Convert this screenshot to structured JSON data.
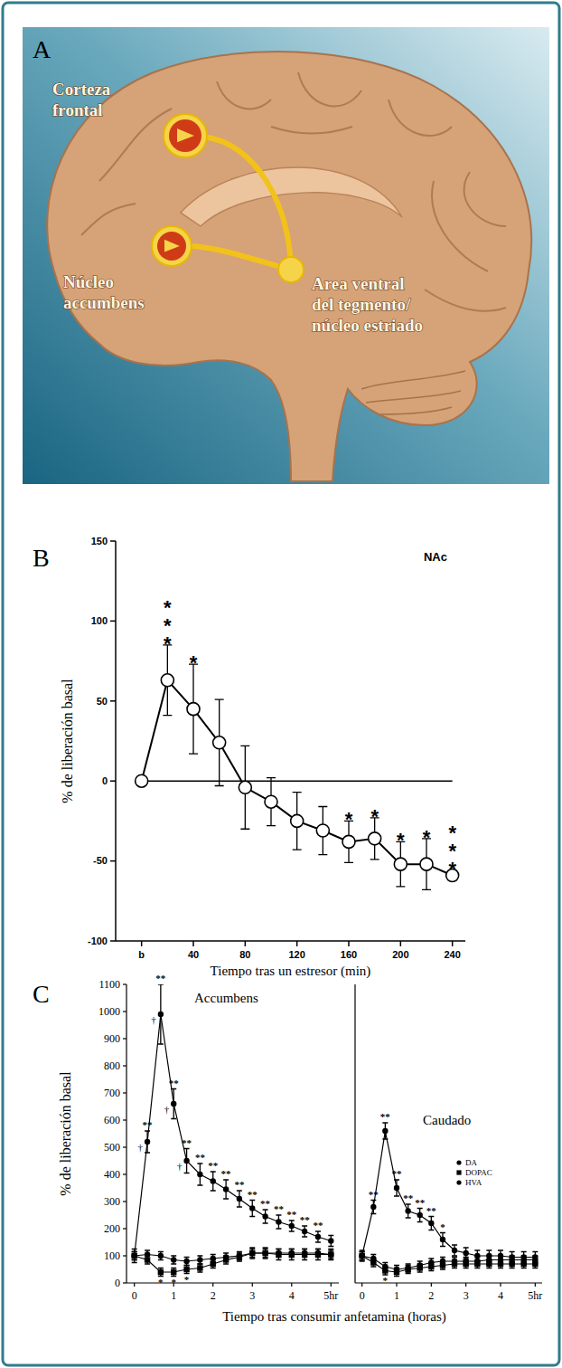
{
  "panel_a": {
    "panel_label": "A",
    "labels": [
      {
        "lines": [
          "Corteza",
          "frontal"
        ]
      },
      {
        "lines": [
          "Núcleo",
          "accumbens"
        ]
      },
      {
        "lines": [
          "Area ventral",
          "del tegmento/",
          "núcleo estriado"
        ]
      }
    ]
  },
  "chart_data": [
    {
      "type": "line",
      "panel_label": "B",
      "title": "NAc",
      "x_label": "Tiempo tras un estresor (min)",
      "y_label": "% de liberación basal",
      "x": [
        0,
        20,
        40,
        60,
        80,
        100,
        120,
        140,
        160,
        180,
        200,
        220,
        240
      ],
      "xlim": [
        -20,
        250
      ],
      "xticks": [
        {
          "value": 0,
          "label": "b"
        },
        40,
        80,
        120,
        160,
        200,
        240
      ],
      "ylim": [
        -100,
        150
      ],
      "yticks": [
        -100,
        -50,
        0,
        50,
        100,
        150
      ],
      "series": [
        {
          "color": "#000000",
          "marker": "open-circle",
          "values": [
            0,
            63,
            45,
            24,
            -4,
            -13,
            -25,
            -31,
            -38,
            -36,
            -52,
            -52,
            -59
          ],
          "errors": [
            0,
            22,
            28,
            27,
            26,
            15,
            18,
            15,
            13,
            13,
            14,
            16,
            3
          ],
          "significance": [
            null,
            "***",
            "*",
            null,
            null,
            null,
            null,
            null,
            "*",
            "*",
            "*",
            "*",
            "***"
          ]
        }
      ]
    },
    {
      "type": "line",
      "panel_label": "C",
      "title": "Accumbens",
      "x_label": "Tiempo tras consumir anfetamina (horas)",
      "y_label": "% de liberación basal",
      "x": [
        0,
        0.33,
        0.67,
        1,
        1.33,
        1.67,
        2,
        2.33,
        2.67,
        3,
        3.33,
        3.67,
        4,
        4.33,
        4.67,
        5
      ],
      "xlim": [
        -0.2,
        5.2
      ],
      "xticks": [
        0,
        1,
        2,
        3,
        4,
        {
          "value": 5,
          "label": "5hr"
        }
      ],
      "ylim": [
        0,
        1100
      ],
      "yticks": [
        0,
        100,
        200,
        300,
        400,
        500,
        600,
        700,
        800,
        900,
        1000,
        1100
      ],
      "series": [
        {
          "color": "#000000",
          "marker": "circle",
          "values": [
            100,
            520,
            990,
            660,
            450,
            400,
            375,
            345,
            310,
            275,
            245,
            225,
            210,
            190,
            170,
            155
          ],
          "errors": [
            25,
            40,
            110,
            55,
            45,
            40,
            35,
            35,
            30,
            30,
            25,
            25,
            20,
            20,
            20,
            20
          ],
          "significance": [
            null,
            "**",
            "**",
            "**",
            "**",
            "**",
            "**",
            "**",
            "**",
            "**",
            "**",
            "**",
            "**",
            "**",
            "**",
            null
          ],
          "dagger": [
            null,
            "†",
            "†",
            "†",
            "†",
            null,
            null,
            null,
            null,
            null,
            null,
            null,
            null,
            null,
            null,
            null
          ]
        },
        {
          "color": "#000000",
          "marker": "square",
          "values": [
            100,
            85,
            40,
            40,
            50,
            55,
            70,
            85,
            95,
            110,
            110,
            105,
            105,
            105,
            105,
            105
          ],
          "errors": [
            15,
            15,
            15,
            15,
            15,
            15,
            15,
            15,
            15,
            20,
            20,
            20,
            20,
            20,
            20,
            20
          ],
          "significance_below": [
            null,
            null,
            "*",
            "*",
            "*",
            null,
            null,
            null,
            null,
            null,
            null,
            null,
            null,
            null,
            null,
            null
          ]
        },
        {
          "color": "#000000",
          "marker": "circle",
          "values": [
            100,
            105,
            100,
            85,
            80,
            85,
            90,
            95,
            100,
            110,
            110,
            110,
            110,
            110,
            110,
            105
          ],
          "errors": [
            15,
            15,
            15,
            15,
            15,
            15,
            15,
            15,
            15,
            15,
            15,
            15,
            15,
            15,
            15,
            15
          ]
        }
      ]
    },
    {
      "type": "line",
      "title": "Caudado",
      "legend": "right",
      "tick_labels": "x",
      "x": [
        0,
        0.33,
        0.67,
        1,
        1.33,
        1.67,
        2,
        2.33,
        2.67,
        3,
        3.33,
        3.67,
        4,
        4.33,
        4.67,
        5
      ],
      "xlim": [
        -0.2,
        5.2
      ],
      "xticks": [
        0,
        1,
        2,
        3,
        4,
        {
          "value": 5,
          "label": "5hr"
        }
      ],
      "ylim": [
        0,
        1100
      ],
      "series": [
        {
          "name": "DA",
          "color": "#000000",
          "marker": "circle",
          "values": [
            100,
            280,
            560,
            350,
            265,
            250,
            220,
            160,
            120,
            110,
            100,
            100,
            100,
            95,
            95,
            95
          ],
          "errors": [
            20,
            25,
            30,
            30,
            25,
            25,
            25,
            25,
            20,
            20,
            20,
            20,
            20,
            20,
            20,
            20
          ],
          "significance": [
            null,
            "**",
            "**",
            "**",
            "**",
            "**",
            "**",
            "*",
            null,
            null,
            null,
            null,
            null,
            null,
            null,
            null
          ]
        },
        {
          "name": "DOPAC",
          "color": "#000000",
          "marker": "square",
          "values": [
            100,
            75,
            45,
            40,
            50,
            55,
            60,
            65,
            70,
            70,
            70,
            70,
            70,
            70,
            70,
            70
          ],
          "errors": [
            15,
            15,
            15,
            15,
            15,
            15,
            15,
            15,
            15,
            15,
            15,
            15,
            15,
            15,
            15,
            15
          ],
          "significance_below": [
            null,
            null,
            "*",
            null,
            null,
            null,
            null,
            null,
            null,
            null,
            null,
            null,
            null,
            null,
            null,
            null
          ]
        },
        {
          "name": "HVA",
          "color": "#000000",
          "marker": "circle",
          "values": [
            100,
            90,
            60,
            50,
            55,
            65,
            75,
            80,
            80,
            80,
            80,
            85,
            85,
            85,
            85,
            85
          ],
          "errors": [
            15,
            15,
            15,
            15,
            15,
            15,
            15,
            15,
            15,
            15,
            15,
            15,
            15,
            15,
            15,
            15
          ]
        }
      ]
    }
  ]
}
